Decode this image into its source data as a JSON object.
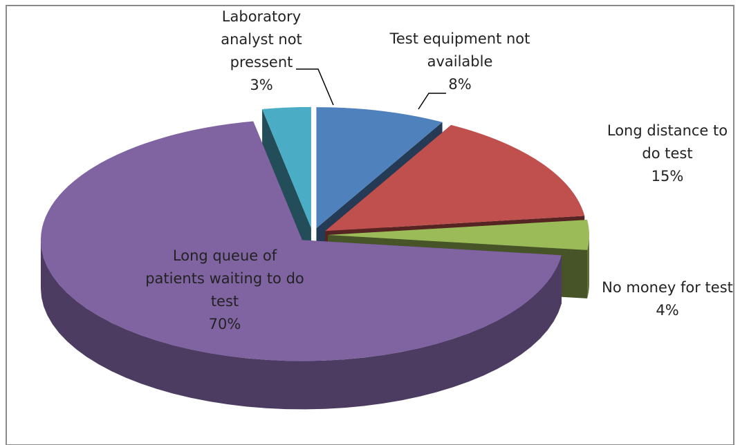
{
  "chart_data": {
    "type": "pie",
    "three_d": true,
    "categories": [
      "Test equipment not available",
      "Long distance to do test",
      "No money for test",
      "Long queue of patients waiting to do test",
      "Laboratory analyst not pressent"
    ],
    "values": [
      8,
      15,
      4,
      70,
      3
    ],
    "value_labels": [
      "8%",
      "15%",
      "4%",
      "70%",
      "3%"
    ],
    "colors": [
      "#4f81bd",
      "#c0504d",
      "#9bbb59",
      "#8064a2",
      "#4bacc6"
    ]
  }
}
